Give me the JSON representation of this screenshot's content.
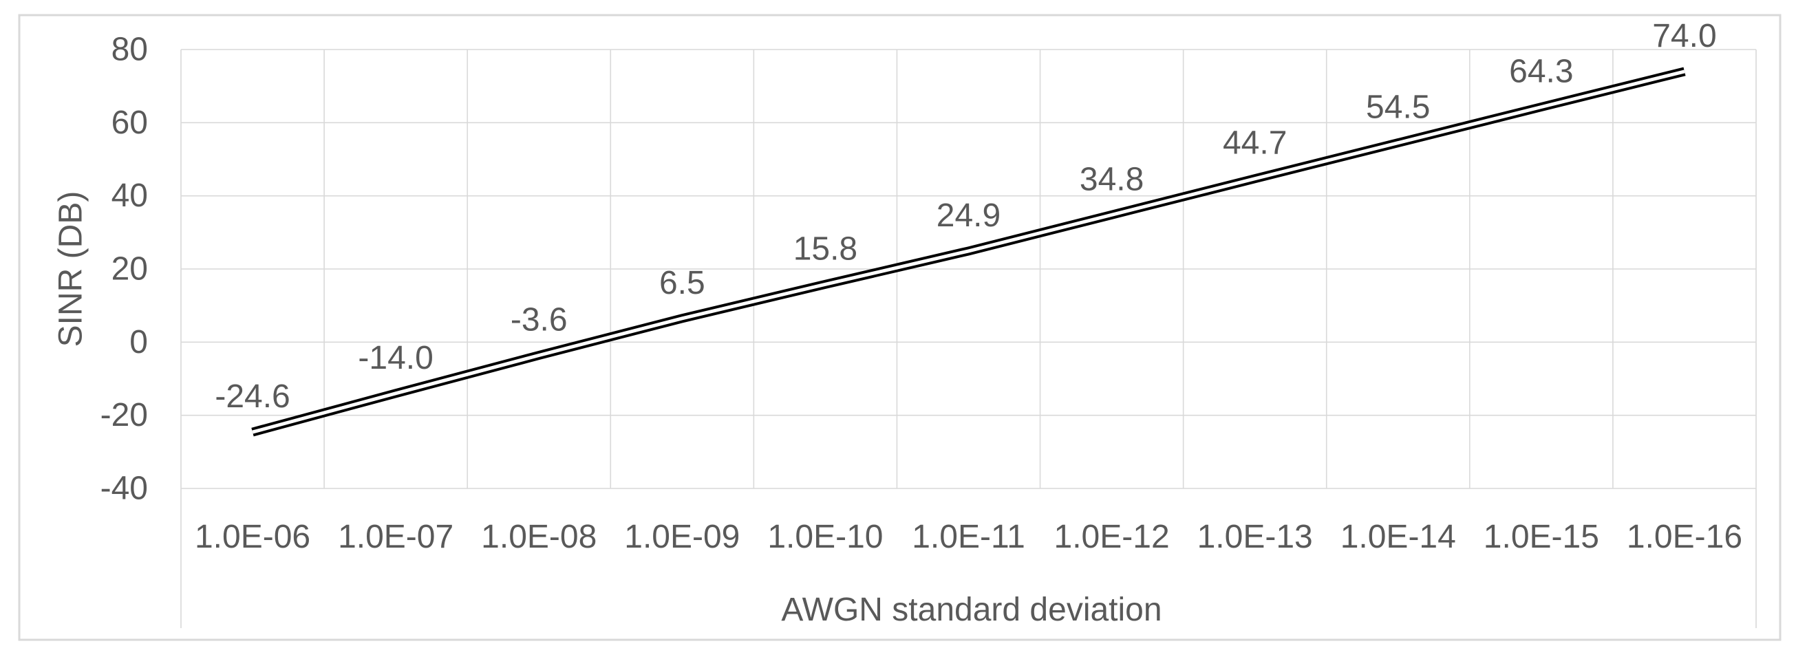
{
  "chart_data": {
    "type": "line",
    "title": "",
    "categories": [
      "1.0E-06",
      "1.0E-07",
      "1.0E-08",
      "1.0E-09",
      "1.0E-10",
      "1.0E-11",
      "1.0E-12",
      "1.0E-13",
      "1.0E-14",
      "1.0E-15",
      "1.0E-16"
    ],
    "values": [
      -24.6,
      -14.0,
      -3.6,
      6.5,
      15.8,
      24.9,
      34.8,
      44.7,
      54.5,
      64.3,
      74.0
    ],
    "data_labels": [
      "-24.6",
      "-14.0",
      "-3.6",
      "6.5",
      "15.8",
      "24.9",
      "34.8",
      "44.7",
      "54.5",
      "64.3",
      "74.0"
    ],
    "xlabel": "AWGN standard deviation",
    "ylabel": "SINR (DB)",
    "y_ticks": [
      80,
      60,
      40,
      20,
      0,
      -20,
      -40
    ],
    "y_tick_labels": [
      "80",
      "60",
      "40",
      "20",
      "0",
      "-20",
      "-40"
    ],
    "ylim": [
      -40,
      80
    ],
    "grid": true,
    "legend_position": "none",
    "line_style": "double",
    "colors": {
      "line": "#000000",
      "line_inner_gap": "#ffffff",
      "grid": "#d9d9d9",
      "border": "#d9d9d9",
      "text": "#595959",
      "background": "#ffffff"
    }
  }
}
